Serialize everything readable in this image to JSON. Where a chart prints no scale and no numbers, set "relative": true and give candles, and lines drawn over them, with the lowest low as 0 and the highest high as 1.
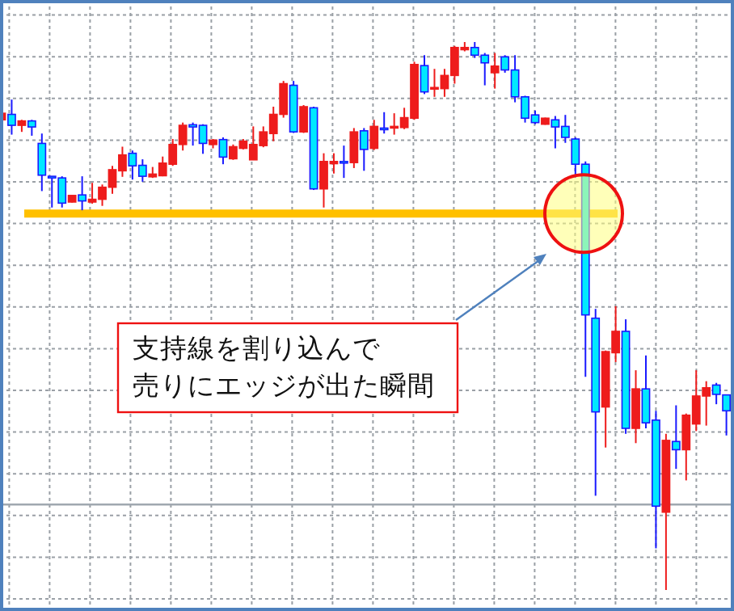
{
  "chart_data": {
    "type": "candlestick",
    "relative": true,
    "grid": true,
    "categories": [
      null,
      null,
      null,
      null,
      null,
      null,
      null,
      null,
      null,
      null,
      null,
      null,
      null,
      null,
      null,
      null,
      null,
      null,
      null,
      null,
      null,
      null,
      null,
      null,
      null,
      null,
      null,
      null,
      null,
      null,
      null,
      null,
      null,
      null,
      null,
      null,
      null,
      null,
      null,
      null,
      null,
      null,
      null,
      null,
      null,
      null,
      null,
      null,
      null,
      null,
      null,
      null,
      null,
      null,
      null,
      null,
      null,
      null,
      null,
      null,
      null,
      null,
      null,
      null,
      null,
      null,
      null,
      null,
      null,
      null,
      null,
      null,
      null
    ],
    "ohlc": [
      [
        0.858,
        0.87,
        0.858,
        0.87
      ],
      [
        0.868,
        0.895,
        0.831,
        0.848
      ],
      [
        0.848,
        0.858,
        0.836,
        0.856
      ],
      [
        0.856,
        0.858,
        0.829,
        0.845
      ],
      [
        0.815,
        0.833,
        0.728,
        0.757
      ],
      [
        0.755,
        0.755,
        0.698,
        0.752
      ],
      [
        0.752,
        0.755,
        0.698,
        0.706
      ],
      [
        0.708,
        0.72,
        0.707,
        0.72
      ],
      [
        0.721,
        0.755,
        0.693,
        0.71
      ],
      [
        0.708,
        0.743,
        0.705,
        0.713
      ],
      [
        0.713,
        0.74,
        0.701,
        0.735
      ],
      [
        0.735,
        0.774,
        0.723,
        0.767
      ],
      [
        0.765,
        0.809,
        0.754,
        0.794
      ],
      [
        0.797,
        0.802,
        0.749,
        0.774
      ],
      [
        0.775,
        0.786,
        0.745,
        0.755
      ],
      [
        0.754,
        0.772,
        0.752,
        0.759
      ],
      [
        0.756,
        0.791,
        0.755,
        0.779
      ],
      [
        0.777,
        0.823,
        0.774,
        0.813
      ],
      [
        0.813,
        0.853,
        0.802,
        0.848
      ],
      [
        0.849,
        0.853,
        0.811,
        0.845
      ],
      [
        0.848,
        0.85,
        0.796,
        0.815
      ],
      [
        0.813,
        0.823,
        0.806,
        0.821
      ],
      [
        0.822,
        0.826,
        0.777,
        0.79
      ],
      [
        0.787,
        0.813,
        0.785,
        0.809
      ],
      [
        0.806,
        0.823,
        0.804,
        0.819
      ],
      [
        0.785,
        0.846,
        0.785,
        0.813
      ],
      [
        0.811,
        0.846,
        0.808,
        0.836
      ],
      [
        0.833,
        0.882,
        0.819,
        0.868
      ],
      [
        0.868,
        0.929,
        0.862,
        0.924
      ],
      [
        0.921,
        0.929,
        0.834,
        0.836
      ],
      [
        0.836,
        0.885,
        0.834,
        0.882
      ],
      [
        0.88,
        0.882,
        0.73,
        0.732
      ],
      [
        0.732,
        0.797,
        0.698,
        0.782
      ],
      [
        0.778,
        0.797,
        0.76,
        0.782
      ],
      [
        0.782,
        0.811,
        0.752,
        0.781
      ],
      [
        0.78,
        0.843,
        0.77,
        0.836
      ],
      [
        0.838,
        0.843,
        0.765,
        0.804
      ],
      [
        0.806,
        0.858,
        0.803,
        0.846
      ],
      [
        0.843,
        0.872,
        0.833,
        0.842
      ],
      [
        0.843,
        0.87,
        0.831,
        0.846
      ],
      [
        0.844,
        0.88,
        0.841,
        0.862
      ],
      [
        0.861,
        0.964,
        0.858,
        0.959
      ],
      [
        0.957,
        0.976,
        0.905,
        0.909
      ],
      [
        0.915,
        0.951,
        0.9,
        0.917
      ],
      [
        0.915,
        0.951,
        0.9,
        0.939
      ],
      [
        0.939,
        0.993,
        0.924,
        0.99
      ],
      [
        0.986,
        1.0,
        0.983,
        0.99
      ],
      [
        0.99,
        1.0,
        0.971,
        0.976
      ],
      [
        0.976,
        0.98,
        0.921,
        0.962
      ],
      [
        0.944,
        0.98,
        0.915,
        0.956
      ],
      [
        0.973,
        0.976,
        0.944,
        0.949
      ],
      [
        0.949,
        0.976,
        0.89,
        0.9
      ],
      [
        0.9,
        0.902,
        0.853,
        0.861
      ],
      [
        0.867,
        0.875,
        0.85,
        0.853
      ],
      [
        0.85,
        0.862,
        0.849,
        0.861
      ],
      [
        0.858,
        0.865,
        0.806,
        0.845
      ],
      [
        0.846,
        0.867,
        0.816,
        0.826
      ],
      [
        0.823,
        0.826,
        0.752,
        0.777
      ],
      [
        0.777,
        0.782,
        0.389,
        0.502
      ],
      [
        0.496,
        0.513,
        0.172,
        0.325
      ],
      [
        0.334,
        0.437,
        0.26,
        0.435
      ],
      [
        0.433,
        0.518,
        0.416,
        0.472
      ],
      [
        0.472,
        0.494,
        0.285,
        0.295
      ],
      [
        0.295,
        0.401,
        0.268,
        0.367
      ],
      [
        0.367,
        0.428,
        0.295,
        0.305
      ],
      [
        0.31,
        0.327,
        0.076,
        0.153
      ],
      [
        0.142,
        0.285,
        0,
        0.273
      ],
      [
        0.271,
        0.337,
        0.221,
        0.256
      ],
      [
        0.256,
        0.322,
        0.2,
        0.319
      ],
      [
        0.303,
        0.401,
        0.29,
        0.354
      ],
      [
        0.354,
        0.381,
        0.3,
        0.369
      ],
      [
        0.374,
        0.378,
        0.339,
        0.357
      ],
      [
        0.356,
        0.356,
        0.282,
        0.327
      ]
    ],
    "colors": [
      "#ee1c1c",
      "#00e8ff",
      "#ee1c1c",
      "#00e8ff",
      "#00e8ff",
      "#00e8ff",
      "#00e8ff",
      "#ee1c1c",
      "#00e8ff",
      "#ee1c1c",
      "#ee1c1c",
      "#ee1c1c",
      "#ee1c1c",
      "#00e8ff",
      "#00e8ff",
      "#ee1c1c",
      "#ee1c1c",
      "#ee1c1c",
      "#ee1c1c",
      "#00e8ff",
      "#00e8ff",
      "#ee1c1c",
      "#00e8ff",
      "#ee1c1c",
      "#ee1c1c",
      "#ee1c1c",
      "#ee1c1c",
      "#ee1c1c",
      "#ee1c1c",
      "#00e8ff",
      "#ee1c1c",
      "#00e8ff",
      "#ee1c1c",
      "#ee1c1c",
      "#00e8ff",
      "#ee1c1c",
      "#00e8ff",
      "#ee1c1c",
      "#00e8ff",
      "#ee1c1c",
      "#ee1c1c",
      "#ee1c1c",
      "#00e8ff",
      "#ee1c1c",
      "#ee1c1c",
      "#ee1c1c",
      "#ee1c1c",
      "#00e8ff",
      "#00e8ff",
      "#ee1c1c",
      "#00e8ff",
      "#00e8ff",
      "#00e8ff",
      "#00e8ff",
      "#ee1c1c",
      "#00e8ff",
      "#00e8ff",
      "#00e8ff",
      "#00e8ff",
      "#00e8ff",
      "#ee1c1c",
      "#ee1c1c",
      "#00e8ff",
      "#ee1c1c",
      "#00e8ff",
      "#00e8ff",
      "#ee1c1c",
      "#00e8ff",
      "#ee1c1c",
      "#ee1c1c",
      "#ee1c1c",
      "#00e8ff",
      "#00e8ff"
    ],
    "ref_lines": [
      {
        "axis": "y",
        "value": 0.687,
        "color": "#ffc000"
      },
      {
        "axis": "y",
        "value": 0.156,
        "color": "#a0a8b0"
      }
    ],
    "annotations": [
      "支持線を割り込んで",
      "売りにエッジが出た瞬間"
    ]
  }
}
